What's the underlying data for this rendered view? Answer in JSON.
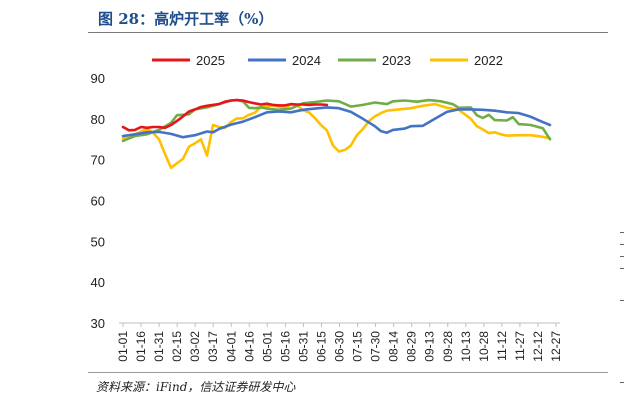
{
  "header": {
    "title": "图 28：高炉开工率（%）"
  },
  "footer": {
    "source": "资料来源：iFind，信达证券研发中心"
  },
  "chart_data": {
    "type": "line",
    "title": "图 28：高炉开工率（%）",
    "ylim": [
      30,
      90
    ],
    "yticks": [
      30,
      40,
      50,
      60,
      70,
      80,
      90
    ],
    "grid": false,
    "legend_position": "top",
    "categories": [
      "01-01",
      "01-16",
      "01-31",
      "02-15",
      "03-02",
      "03-17",
      "04-01",
      "04-16",
      "05-01",
      "05-16",
      "05-31",
      "06-15",
      "06-30",
      "07-15",
      "07-30",
      "08-14",
      "08-29",
      "09-13",
      "09-28",
      "10-13",
      "10-28",
      "11-12",
      "11-27",
      "12-12",
      "12-27"
    ],
    "x_numeric_range": [
      0,
      361
    ],
    "series": [
      {
        "name": "2025",
        "color": "#e8141a",
        "points": [
          [
            0,
            78
          ],
          [
            5,
            77.2
          ],
          [
            10,
            77.3
          ],
          [
            15,
            78
          ],
          [
            20,
            77.8
          ],
          [
            25,
            78
          ],
          [
            30,
            78
          ],
          [
            35,
            77.8
          ],
          [
            40,
            78.5
          ],
          [
            45,
            79.5
          ],
          [
            50,
            80.6
          ],
          [
            55,
            81.8
          ],
          [
            60,
            82.3
          ],
          [
            65,
            82.9
          ],
          [
            70,
            83.2
          ],
          [
            75,
            83.4
          ],
          [
            80,
            83.6
          ],
          [
            85,
            84.2
          ],
          [
            90,
            84.5
          ],
          [
            95,
            84.6
          ],
          [
            100,
            84.5
          ],
          [
            105,
            84.1
          ],
          [
            110,
            83.8
          ],
          [
            115,
            83.5
          ],
          [
            120,
            83.7
          ],
          [
            125,
            83.4
          ],
          [
            130,
            83.3
          ],
          [
            135,
            83.3
          ],
          [
            140,
            83.6
          ],
          [
            145,
            83.5
          ],
          [
            150,
            83.5
          ],
          [
            155,
            83.4
          ],
          [
            160,
            83.5
          ],
          [
            165,
            83.5
          ],
          [
            170,
            83.4
          ]
        ]
      },
      {
        "name": "2024",
        "color": "#4472c4",
        "points": [
          [
            0,
            75.8
          ],
          [
            10,
            76.2
          ],
          [
            20,
            76.7
          ],
          [
            30,
            76.8
          ],
          [
            40,
            76.3
          ],
          [
            50,
            75.5
          ],
          [
            60,
            76
          ],
          [
            70,
            76.9
          ],
          [
            75,
            76.7
          ],
          [
            80,
            77.5
          ],
          [
            90,
            78.6
          ],
          [
            100,
            79.3
          ],
          [
            110,
            80.4
          ],
          [
            120,
            81.6
          ],
          [
            130,
            81.8
          ],
          [
            140,
            81.6
          ],
          [
            150,
            82.2
          ],
          [
            160,
            82.5
          ],
          [
            170,
            82.8
          ],
          [
            180,
            82.6
          ],
          [
            190,
            81.7
          ],
          [
            200,
            80
          ],
          [
            210,
            78.2
          ],
          [
            215,
            77
          ],
          [
            220,
            76.6
          ],
          [
            225,
            77.3
          ],
          [
            235,
            77.6
          ],
          [
            240,
            78.2
          ],
          [
            250,
            78.3
          ],
          [
            260,
            80
          ],
          [
            270,
            81.7
          ],
          [
            280,
            82.3
          ],
          [
            290,
            82.3
          ],
          [
            300,
            82.2
          ],
          [
            310,
            82
          ],
          [
            320,
            81.6
          ],
          [
            330,
            81.4
          ],
          [
            340,
            80.5
          ],
          [
            350,
            79.2
          ],
          [
            356,
            78.5
          ]
        ]
      },
      {
        "name": "2023",
        "color": "#70ad47",
        "points": [
          [
            0,
            74.6
          ],
          [
            10,
            75.8
          ],
          [
            20,
            76.2
          ],
          [
            30,
            77.3
          ],
          [
            40,
            79
          ],
          [
            45,
            80.9
          ],
          [
            50,
            81
          ],
          [
            55,
            81.1
          ],
          [
            60,
            82.3
          ],
          [
            70,
            82.8
          ],
          [
            80,
            83.6
          ],
          [
            90,
            84.5
          ],
          [
            95,
            84.6
          ],
          [
            100,
            84.3
          ],
          [
            105,
            82.7
          ],
          [
            110,
            82.6
          ],
          [
            115,
            82.8
          ],
          [
            120,
            82.5
          ],
          [
            130,
            82.2
          ],
          [
            140,
            82.5
          ],
          [
            150,
            83.8
          ],
          [
            160,
            84.1
          ],
          [
            170,
            84.5
          ],
          [
            180,
            84.3
          ],
          [
            190,
            83
          ],
          [
            200,
            83.4
          ],
          [
            210,
            84
          ],
          [
            220,
            83.6
          ],
          [
            225,
            84.3
          ],
          [
            235,
            84.5
          ],
          [
            245,
            84.2
          ],
          [
            255,
            84.6
          ],
          [
            265,
            84.3
          ],
          [
            275,
            83.6
          ],
          [
            280,
            82.7
          ],
          [
            290,
            82.8
          ],
          [
            295,
            80.9
          ],
          [
            300,
            80.2
          ],
          [
            305,
            81
          ],
          [
            310,
            79.7
          ],
          [
            320,
            79.6
          ],
          [
            325,
            80.4
          ],
          [
            330,
            78.7
          ],
          [
            340,
            78.5
          ],
          [
            350,
            77.7
          ],
          [
            356,
            75
          ]
        ]
      },
      {
        "name": "2022",
        "color": "#ffc000",
        "points": [
          [
            0,
            75.2
          ],
          [
            5,
            75.6
          ],
          [
            10,
            76.2
          ],
          [
            20,
            77.5
          ],
          [
            25,
            76.6
          ],
          [
            30,
            75
          ],
          [
            35,
            71.4
          ],
          [
            40,
            68
          ],
          [
            45,
            69.1
          ],
          [
            50,
            70.2
          ],
          [
            55,
            73.2
          ],
          [
            60,
            74
          ],
          [
            65,
            75
          ],
          [
            70,
            71
          ],
          [
            75,
            78.5
          ],
          [
            80,
            78
          ],
          [
            85,
            77.8
          ],
          [
            90,
            79.2
          ],
          [
            95,
            80.1
          ],
          [
            100,
            80.1
          ],
          [
            105,
            81
          ],
          [
            110,
            81.5
          ],
          [
            115,
            82.9
          ],
          [
            120,
            83.1
          ],
          [
            125,
            83.3
          ],
          [
            130,
            83
          ],
          [
            135,
            82.6
          ],
          [
            140,
            83.5
          ],
          [
            145,
            83.4
          ],
          [
            150,
            82.1
          ],
          [
            155,
            81.6
          ],
          [
            160,
            80.2
          ],
          [
            165,
            78.5
          ],
          [
            170,
            77.2
          ],
          [
            175,
            73.5
          ],
          [
            180,
            72
          ],
          [
            185,
            72.4
          ],
          [
            190,
            73.5
          ],
          [
            195,
            76
          ],
          [
            200,
            77.5
          ],
          [
            205,
            79.4
          ],
          [
            210,
            80.6
          ],
          [
            215,
            81.4
          ],
          [
            220,
            82
          ],
          [
            230,
            82.3
          ],
          [
            240,
            82.6
          ],
          [
            250,
            83.2
          ],
          [
            260,
            83.6
          ],
          [
            270,
            82.7
          ],
          [
            280,
            82.2
          ],
          [
            290,
            80
          ],
          [
            295,
            78.2
          ],
          [
            300,
            77.4
          ],
          [
            305,
            76.5
          ],
          [
            310,
            76.7
          ],
          [
            315,
            76.2
          ],
          [
            320,
            75.9
          ],
          [
            330,
            76
          ],
          [
            340,
            76
          ],
          [
            350,
            75.6
          ],
          [
            356,
            75.2
          ]
        ]
      }
    ]
  }
}
